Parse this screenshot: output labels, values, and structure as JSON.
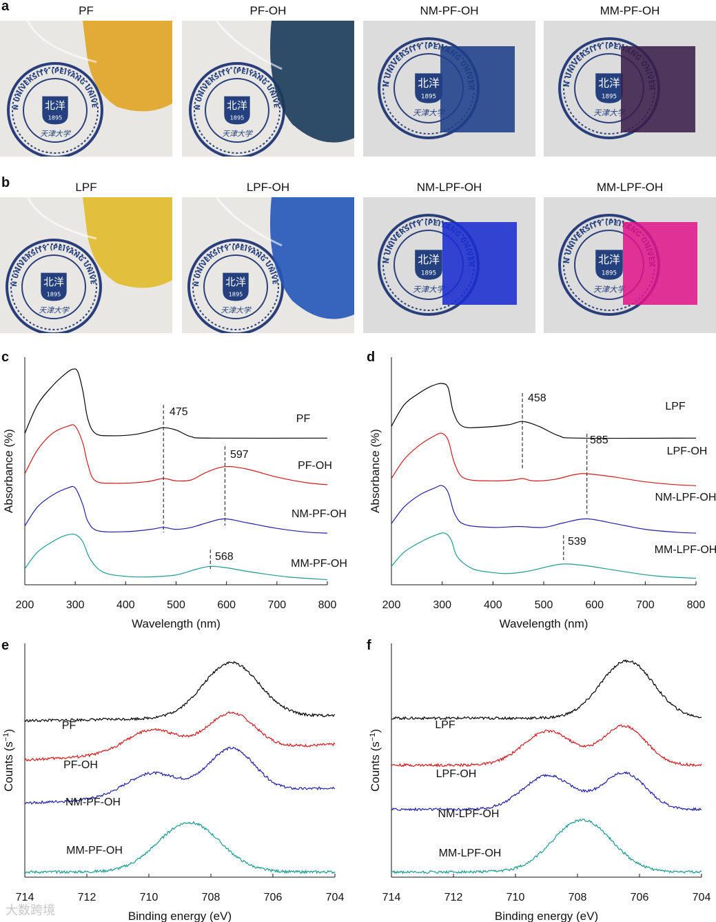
{
  "panels": {
    "a": {
      "letter": "a",
      "titles": [
        "PF",
        "PF-OH",
        "NM-PF-OH",
        "MM-PF-OH"
      ]
    },
    "b": {
      "letter": "b",
      "titles": [
        "LPF",
        "LPF-OH",
        "NM-LPF-OH",
        "MM-LPF-OH"
      ]
    }
  },
  "photos": {
    "seal_top_text": "TIANJIN UNIVERSITY (PEIYANG UNIVERSITY)",
    "seal_center": "北洋",
    "seal_year": "1895",
    "seal_bottom": "天津大学",
    "colors": {
      "a": [
        "#e1a018",
        "#1a3a5a",
        "#1e3f8a",
        "#3a1f4a"
      ],
      "b": [
        "#e0b820",
        "#2456b8",
        "#1a2ed0",
        "#e0148a"
      ]
    }
  },
  "chart_data": [
    {
      "id": "c",
      "letter": "c",
      "type": "line",
      "xlabel": "Wavelength (nm)",
      "ylabel": "Absorbance (%)",
      "xlim": [
        200,
        800
      ],
      "xticks": [
        200,
        300,
        400,
        500,
        600,
        700,
        800
      ],
      "series": [
        {
          "name": "PF",
          "color": "#000000",
          "offset": 3.0,
          "points": [
            [
              200,
              3.1
            ],
            [
              225,
              3.7
            ],
            [
              255,
              4.1
            ],
            [
              280,
              4.35
            ],
            [
              295,
              4.45
            ],
            [
              305,
              4.4
            ],
            [
              315,
              4.0
            ],
            [
              325,
              3.4
            ],
            [
              340,
              3.1
            ],
            [
              370,
              3.05
            ],
            [
              420,
              3.08
            ],
            [
              460,
              3.18
            ],
            [
              475,
              3.22
            ],
            [
              500,
              3.17
            ],
            [
              530,
              3.03
            ],
            [
              570,
              3.0
            ],
            [
              800,
              3.0
            ]
          ]
        },
        {
          "name": "PF-OH",
          "color": "#d0191b",
          "offset": 2.0,
          "points": [
            [
              200,
              2.25
            ],
            [
              225,
              2.75
            ],
            [
              255,
              3.1
            ],
            [
              285,
              3.25
            ],
            [
              300,
              3.25
            ],
            [
              315,
              2.9
            ],
            [
              325,
              2.45
            ],
            [
              340,
              2.1
            ],
            [
              380,
              2.05
            ],
            [
              440,
              2.08
            ],
            [
              475,
              2.15
            ],
            [
              500,
              2.1
            ],
            [
              530,
              2.12
            ],
            [
              560,
              2.28
            ],
            [
              597,
              2.4
            ],
            [
              640,
              2.35
            ],
            [
              700,
              2.18
            ],
            [
              760,
              2.06
            ],
            [
              800,
              2.02
            ]
          ]
        },
        {
          "name": "NM-PF-OH",
          "color": "#1f1fa8",
          "offset": 1.0,
          "points": [
            [
              200,
              1.15
            ],
            [
              225,
              1.55
            ],
            [
              255,
              1.8
            ],
            [
              285,
              1.95
            ],
            [
              300,
              1.95
            ],
            [
              315,
              1.6
            ],
            [
              325,
              1.25
            ],
            [
              345,
              1.05
            ],
            [
              400,
              1.03
            ],
            [
              450,
              1.08
            ],
            [
              475,
              1.12
            ],
            [
              500,
              1.08
            ],
            [
              530,
              1.12
            ],
            [
              565,
              1.23
            ],
            [
              597,
              1.3
            ],
            [
              640,
              1.22
            ],
            [
              700,
              1.1
            ],
            [
              760,
              1.02
            ],
            [
              800,
              1.0
            ]
          ]
        },
        {
          "name": "MM-PF-OH",
          "color": "#1a9a90",
          "offset": 0.0,
          "points": [
            [
              200,
              0.25
            ],
            [
              225,
              0.6
            ],
            [
              255,
              0.82
            ],
            [
              280,
              0.95
            ],
            [
              300,
              0.97
            ],
            [
              315,
              0.82
            ],
            [
              330,
              0.45
            ],
            [
              355,
              0.18
            ],
            [
              400,
              0.09
            ],
            [
              450,
              0.08
            ],
            [
              500,
              0.12
            ],
            [
              540,
              0.24
            ],
            [
              568,
              0.3
            ],
            [
              600,
              0.27
            ],
            [
              650,
              0.18
            ],
            [
              720,
              0.08
            ],
            [
              800,
              0.02
            ]
          ]
        }
      ],
      "markers": [
        {
          "x": 475,
          "label": "475"
        },
        {
          "x": 597,
          "label": "597"
        },
        {
          "x": 568,
          "label": "568"
        }
      ]
    },
    {
      "id": "d",
      "letter": "d",
      "type": "line",
      "xlabel": "Wavelength (nm)",
      "ylabel": "Absorbance (%)",
      "xlim": [
        200,
        800
      ],
      "xticks": [
        200,
        300,
        400,
        500,
        600,
        700,
        800
      ],
      "series": [
        {
          "name": "LPF",
          "color": "#000000",
          "offset": 3.0,
          "points": [
            [
              200,
              3.25
            ],
            [
              225,
              3.7
            ],
            [
              255,
              3.95
            ],
            [
              280,
              4.1
            ],
            [
              300,
              4.15
            ],
            [
              312,
              4.05
            ],
            [
              322,
              3.55
            ],
            [
              340,
              3.25
            ],
            [
              380,
              3.23
            ],
            [
              430,
              3.28
            ],
            [
              458,
              3.35
            ],
            [
              490,
              3.25
            ],
            [
              530,
              3.05
            ],
            [
              570,
              3.0
            ],
            [
              800,
              3.0
            ]
          ]
        },
        {
          "name": "LPF-OH",
          "color": "#d0191b",
          "offset": 2.0,
          "points": [
            [
              200,
              2.15
            ],
            [
              225,
              2.55
            ],
            [
              255,
              2.85
            ],
            [
              285,
              3.05
            ],
            [
              300,
              3.1
            ],
            [
              312,
              2.95
            ],
            [
              325,
              2.45
            ],
            [
              345,
              2.15
            ],
            [
              400,
              2.1
            ],
            [
              440,
              2.12
            ],
            [
              458,
              2.15
            ],
            [
              480,
              2.1
            ],
            [
              520,
              2.13
            ],
            [
              560,
              2.23
            ],
            [
              585,
              2.25
            ],
            [
              640,
              2.18
            ],
            [
              700,
              2.08
            ],
            [
              760,
              2.02
            ],
            [
              800,
              2.0
            ]
          ]
        },
        {
          "name": "NM-LPF-OH",
          "color": "#1f1fa8",
          "offset": 1.0,
          "points": [
            [
              200,
              1.2
            ],
            [
              225,
              1.55
            ],
            [
              255,
              1.8
            ],
            [
              285,
              1.95
            ],
            [
              300,
              2.0
            ],
            [
              312,
              1.85
            ],
            [
              325,
              1.4
            ],
            [
              345,
              1.18
            ],
            [
              400,
              1.12
            ],
            [
              450,
              1.14
            ],
            [
              500,
              1.12
            ],
            [
              540,
              1.22
            ],
            [
              585,
              1.3
            ],
            [
              640,
              1.2
            ],
            [
              700,
              1.08
            ],
            [
              760,
              1.02
            ],
            [
              800,
              1.0
            ]
          ]
        },
        {
          "name": "MM-LPF-OH",
          "color": "#1a9a90",
          "offset": 0.0,
          "points": [
            [
              200,
              0.3
            ],
            [
              225,
              0.6
            ],
            [
              255,
              0.8
            ],
            [
              285,
              0.95
            ],
            [
              305,
              1.0
            ],
            [
              318,
              0.85
            ],
            [
              330,
              0.5
            ],
            [
              360,
              0.25
            ],
            [
              400,
              0.17
            ],
            [
              430,
              0.15
            ],
            [
              470,
              0.2
            ],
            [
              510,
              0.3
            ],
            [
              539,
              0.35
            ],
            [
              580,
              0.32
            ],
            [
              640,
              0.22
            ],
            [
              720,
              0.1
            ],
            [
              800,
              0.05
            ]
          ]
        }
      ],
      "markers": [
        {
          "x": 458,
          "label": "458"
        },
        {
          "x": 585,
          "label": "585"
        },
        {
          "x": 539,
          "label": "539"
        }
      ]
    },
    {
      "id": "e",
      "letter": "e",
      "type": "line",
      "xlabel": "Binding energy (eV)",
      "ylabel_main": "Counts (s",
      "ylabel_sup": "−1",
      "ylabel_end": ")",
      "xlim": [
        714,
        704
      ],
      "xticks": [
        714,
        712,
        710,
        708,
        706,
        704
      ],
      "series": [
        {
          "name": "PF",
          "color": "#000000",
          "peaks": [
            [
              707.35,
              1.05,
              0.9
            ]
          ],
          "base": 0.02,
          "slope": 0.01,
          "offset": 2.9
        },
        {
          "name": "PF-OH",
          "color": "#d0191b",
          "peaks": [
            [
              709.9,
              0.45,
              0.85
            ],
            [
              707.35,
              0.7,
              0.75
            ]
          ],
          "base": 0.02,
          "slope": 0.03,
          "offset": 2.15
        },
        {
          "name": "NM-PF-OH",
          "color": "#1f1fa8",
          "peaks": [
            [
              709.9,
              0.45,
              0.85
            ],
            [
              707.35,
              0.85,
              0.75
            ]
          ],
          "base": 0.02,
          "slope": 0.03,
          "offset": 1.32
        },
        {
          "name": "MM-PF-OH",
          "color": "#1a9a90",
          "peaks": [
            [
              708.7,
              0.95,
              1.0
            ]
          ],
          "base": 0.02,
          "slope": 0.0,
          "offset": 0.0
        }
      ]
    },
    {
      "id": "f",
      "letter": "f",
      "type": "line",
      "xlabel": "Binding energy (eV)",
      "ylabel_main": "Counts (s",
      "ylabel_sup": "−1",
      "ylabel_end": ")",
      "xlim": [
        714,
        704
      ],
      "xticks": [
        714,
        712,
        710,
        708,
        706,
        704
      ],
      "series": [
        {
          "name": "LPF",
          "color": "#000000",
          "peaks": [
            [
              706.4,
              1.1,
              0.85
            ]
          ],
          "base": 0.02,
          "slope": 0.0,
          "offset": 2.95
        },
        {
          "name": "LPF-OH",
          "color": "#d0191b",
          "peaks": [
            [
              708.95,
              0.65,
              0.8
            ],
            [
              706.5,
              0.75,
              0.7
            ]
          ],
          "base": 0.02,
          "slope": 0.0,
          "offset": 2.05
        },
        {
          "name": "NM-LPF-OH",
          "color": "#1f1fa8",
          "peaks": [
            [
              708.95,
              0.65,
              0.8
            ],
            [
              706.5,
              0.7,
              0.7
            ]
          ],
          "base": 0.02,
          "slope": 0.0,
          "offset": 1.2
        },
        {
          "name": "MM-LPF-OH",
          "color": "#1a9a90",
          "peaks": [
            [
              707.85,
              1.0,
              0.95
            ]
          ],
          "base": 0.02,
          "slope": 0.0,
          "offset": 0.0
        }
      ]
    }
  ],
  "watermark": "大数跨境"
}
